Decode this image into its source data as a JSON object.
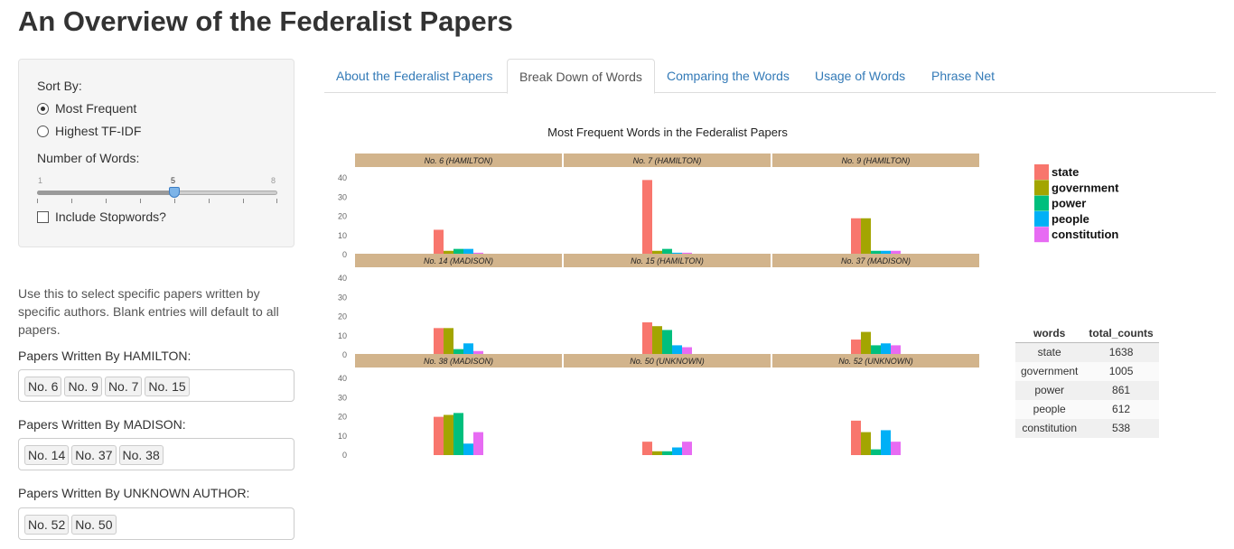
{
  "page": {
    "title": "An Overview of the Federalist Papers"
  },
  "sidebar": {
    "sort_label": "Sort By:",
    "sort_options": [
      {
        "label": "Most Frequent",
        "checked": true
      },
      {
        "label": "Highest TF-IDF",
        "checked": false
      }
    ],
    "num_words_label": "Number of Words:",
    "slider": {
      "min": "1",
      "max": "8",
      "value": "5",
      "fraction": 0.5714
    },
    "stopwords_label": "Include Stopwords?",
    "help_text": "Use this to select specific papers written by specific authors. Blank entries will default to all papers.",
    "hamilton_label": "Papers Written By HAMILTON:",
    "hamilton_papers": [
      "No. 6",
      "No. 9",
      "No. 7",
      "No. 15"
    ],
    "madison_label": "Papers Written By MADISON:",
    "madison_papers": [
      "No. 14",
      "No. 37",
      "No. 38"
    ],
    "unknown_label": "Papers Written By UNKNOWN AUTHOR:",
    "unknown_papers": [
      "No. 52",
      "No. 50"
    ]
  },
  "tabs": [
    {
      "label": "About the Federalist Papers",
      "active": false
    },
    {
      "label": "Break Down of Words",
      "active": true
    },
    {
      "label": "Comparing the Words",
      "active": false
    },
    {
      "label": "Usage of Words",
      "active": false
    },
    {
      "label": "Phrase Net",
      "active": false
    }
  ],
  "colors": {
    "accent_link": "#337ab7",
    "strip_bg": "#d2b48c",
    "series": [
      "#f8766d",
      "#a3a500",
      "#00bf7d",
      "#00b0f6",
      "#e76bf3"
    ]
  },
  "chart_data": {
    "type": "bar",
    "title": "Most Frequent Words in the Federalist Papers",
    "categories": [
      "state",
      "government",
      "power",
      "people",
      "constitution"
    ],
    "legend_position": "right",
    "ylim": [
      0,
      42
    ],
    "yticks": [
      "0",
      "10",
      "20",
      "30",
      "40"
    ],
    "facets": [
      {
        "label": "No. 6 (HAMILTON)",
        "values": [
          13,
          2,
          3,
          3,
          1
        ]
      },
      {
        "label": "No. 7 (HAMILTON)",
        "values": [
          39,
          2,
          3,
          1,
          1
        ]
      },
      {
        "label": "No. 9 (HAMILTON)",
        "values": [
          19,
          19,
          2,
          2,
          2
        ]
      },
      {
        "label": "No. 14 (MADISON)",
        "values": [
          14,
          14,
          3,
          6,
          2
        ]
      },
      {
        "label": "No. 15 (HAMILTON)",
        "values": [
          17,
          15,
          13,
          5,
          4
        ]
      },
      {
        "label": "No. 37 (MADISON)",
        "values": [
          8,
          12,
          5,
          6,
          5
        ]
      },
      {
        "label": "No. 38 (MADISON)",
        "values": [
          20,
          21,
          22,
          6,
          12
        ]
      },
      {
        "label": "No. 50 (UNKNOWN)",
        "values": [
          7,
          2,
          2,
          4,
          7
        ]
      },
      {
        "label": "No. 52 (UNKNOWN)",
        "values": [
          18,
          12,
          3,
          13,
          7
        ]
      }
    ]
  },
  "table": {
    "headers": [
      "words",
      "total_counts"
    ],
    "rows": [
      [
        "state",
        "1638"
      ],
      [
        "government",
        "1005"
      ],
      [
        "power",
        "861"
      ],
      [
        "people",
        "612"
      ],
      [
        "constitution",
        "538"
      ]
    ]
  }
}
